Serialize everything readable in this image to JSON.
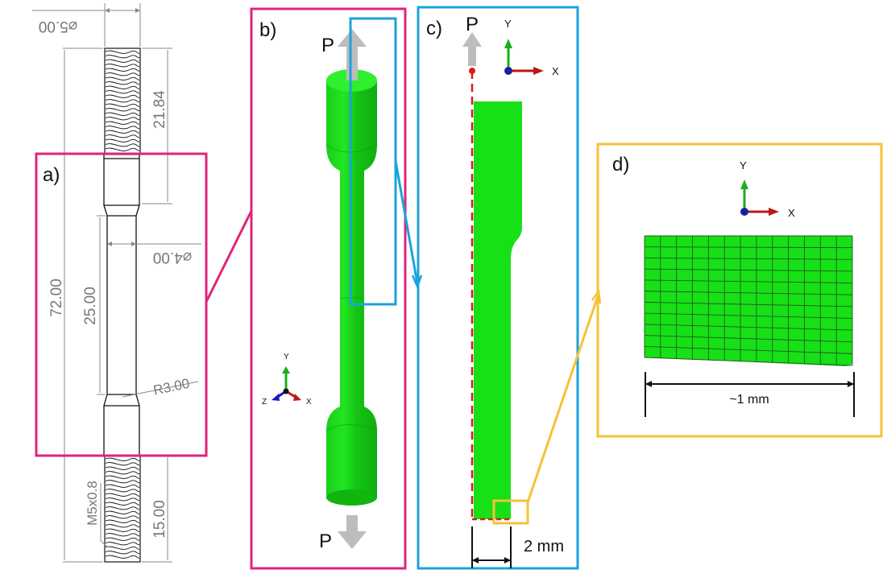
{
  "panels": {
    "a": {
      "label": "a)",
      "color": "#e0237a"
    },
    "b": {
      "label": "b)",
      "color": "#e0237a"
    },
    "c": {
      "label": "c)",
      "color": "#1aa3db"
    },
    "d": {
      "label": "d)",
      "color": "#f5c237"
    }
  },
  "drawing": {
    "dia_top": "⌀5.00",
    "len_top": "21.84",
    "dia_mid": "⌀4.00",
    "len_total": "72.00",
    "len_gauge": "25.00",
    "radius": "R3.00",
    "thread": "M5x0.8",
    "len_bottom": "15.00"
  },
  "load": {
    "top": "P",
    "bottom": "P"
  },
  "axes": {
    "x": "X",
    "y": "Y",
    "z": "Z"
  },
  "scale": {
    "model_width": "2 mm",
    "mesh_width": "~1 mm"
  },
  "colors": {
    "mesh_green": "#17e017",
    "load_arrow": "#bdbdbd",
    "symmetry_line": "#d21f1f"
  }
}
